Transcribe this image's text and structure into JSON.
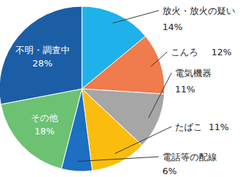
{
  "chart_data": {
    "type": "pie",
    "categories": [
      "放火・放火の疑い",
      "こんろ",
      "電気機器",
      "たばこ",
      "電話等の配線",
      "その他",
      "不明・調査中"
    ],
    "values": [
      14,
      12,
      11,
      11,
      6,
      18,
      28
    ],
    "value_labels": [
      "14%",
      "12%",
      "11%",
      "11%",
      "6%",
      "18%",
      "28%"
    ],
    "colors": [
      "#1fb2ea",
      "#f07b4c",
      "#a6a6a6",
      "#fbbd0d",
      "#1c6fc1",
      "#6dc172",
      "#1b5ea6"
    ],
    "data_labels": true
  }
}
